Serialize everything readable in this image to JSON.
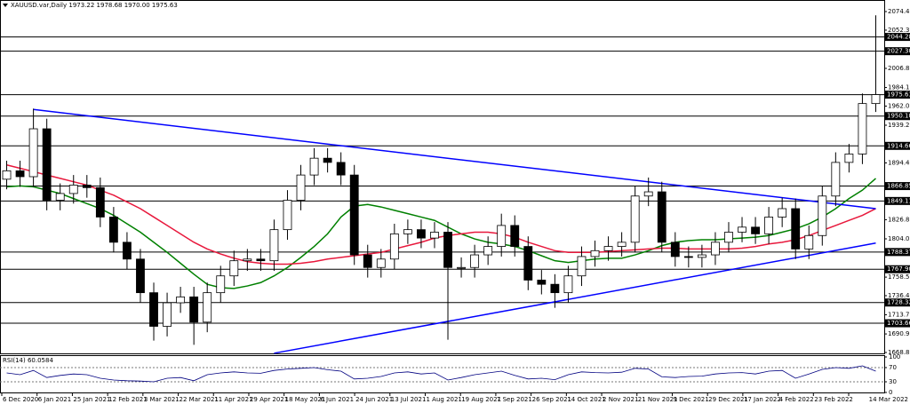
{
  "chart_data": {
    "type": "candlestick",
    "title": "XAUUSD.var,Daily  1973.22 1978.68 1970.00 1975.63",
    "ylim": [
      1667.8,
      2088.2
    ],
    "yticks": [
      2074.45,
      2052.35,
      2006.85,
      {
        "value": 1984.1,
        "label": "1984.10"
      },
      {
        "value": 1962,
        "label": "1962.00"
      },
      1939.25,
      {
        "value": 1894.4,
        "label": "1894.40"
      },
      1826.85,
      1804.05,
      1758.55,
      1736.45,
      {
        "value": 1713.7,
        "label": "1713.70"
      },
      1690.95,
      1668.88
    ],
    "levels": [
      2044.28,
      {
        "value": 2027.3,
        "label": "2027.30"
      },
      1975.63,
      {
        "value": 1950.1,
        "label": "1950.10"
      },
      1914.66,
      1866.85,
      1849.11,
      1788.37,
      {
        "value": 1767.9,
        "label": "1767.90"
      },
      1728.32,
      1703.66
    ],
    "xticks": [
      "6 Dec 2020",
      "6 Jan 2021",
      "25 Jan 2021",
      "12 Feb 2021",
      "3 Mar 2021",
      "22 Mar 2021",
      "11 Apr 2021",
      "29 Apr 2021",
      "18 May 2021",
      "6 Jun 2021",
      "24 Jun 2021",
      "13 Jul 2021",
      "1 Aug 2021",
      "19 Aug 2021",
      "7 Sep 2021",
      "26 Sep 2021",
      "14 Oct 2021",
      "2 Nov 2021",
      "21 Nov 2021",
      "9 Dec 2021",
      "29 Dec 2021",
      "17 Jan 2022",
      "4 Feb 2022",
      "23 Feb 2022",
      "14 Mar 2022"
    ],
    "open": [
      1875,
      1885,
      1878,
      1935,
      1850,
      1858,
      1868,
      1865,
      1830,
      1800,
      1780,
      1740,
      1700,
      1728,
      1735,
      1705,
      1740,
      1760,
      1778,
      1780,
      1778,
      1815,
      1850,
      1880,
      1900,
      1895,
      1880,
      1785,
      1770,
      1780,
      1810,
      1815,
      1805,
      1812,
      1770,
      1770,
      1785,
      1795,
      1820,
      1795,
      1755,
      1750,
      1740,
      1760,
      1783,
      1790,
      1795,
      1800,
      1855,
      1860,
      1800,
      1783,
      1782,
      1785,
      1800,
      1812,
      1818,
      1810,
      1830,
      1840,
      1792,
      1808,
      1855,
      1895,
      1905,
      1965
    ],
    "high": [
      1897,
      1897,
      1959,
      1947,
      1870,
      1880,
      1880,
      1877,
      1842,
      1812,
      1792,
      1752,
      1740,
      1747,
      1747,
      1752,
      1772,
      1790,
      1792,
      1792,
      1827,
      1862,
      1892,
      1912,
      1912,
      1907,
      1892,
      1797,
      1792,
      1822,
      1827,
      1827,
      1824,
      1824,
      1782,
      1797,
      1807,
      1834,
      1832,
      1807,
      1767,
      1762,
      1772,
      1795,
      1802,
      1807,
      1812,
      1867,
      1877,
      1872,
      1812,
      1795,
      1797,
      1812,
      1824,
      1830,
      1830,
      1842,
      1853,
      1852,
      1820,
      1867,
      1907,
      1917,
      1977,
      2070
    ],
    "low": [
      1863,
      1866,
      1866,
      1838,
      1838,
      1846,
      1853,
      1818,
      1788,
      1768,
      1728,
      1683,
      1688,
      1716,
      1678,
      1693,
      1728,
      1748,
      1766,
      1766,
      1766,
      1803,
      1838,
      1868,
      1883,
      1868,
      1773,
      1758,
      1758,
      1768,
      1798,
      1793,
      1793,
      1684,
      1758,
      1758,
      1773,
      1783,
      1783,
      1743,
      1738,
      1722,
      1728,
      1748,
      1771,
      1778,
      1783,
      1788,
      1843,
      1788,
      1771,
      1770,
      1770,
      1773,
      1788,
      1800,
      1798,
      1798,
      1818,
      1780,
      1780,
      1796,
      1843,
      1883,
      1893,
      1955
    ],
    "close": [
      1885,
      1878,
      1935,
      1850,
      1858,
      1868,
      1865,
      1830,
      1800,
      1780,
      1740,
      1700,
      1728,
      1735,
      1705,
      1740,
      1760,
      1778,
      1780,
      1778,
      1815,
      1850,
      1880,
      1900,
      1895,
      1880,
      1785,
      1770,
      1780,
      1810,
      1815,
      1805,
      1812,
      1770,
      1770,
      1785,
      1795,
      1820,
      1795,
      1755,
      1750,
      1740,
      1760,
      1783,
      1790,
      1795,
      1800,
      1855,
      1860,
      1800,
      1783,
      1782,
      1785,
      1800,
      1812,
      1818,
      1810,
      1830,
      1840,
      1792,
      1808,
      1855,
      1895,
      1905,
      1965,
      1975.63
    ],
    "series": [
      {
        "color": "#008000",
        "values": [
          1866,
          1867,
          1866,
          1862,
          1858,
          1852,
          1846,
          1840,
          1832,
          1822,
          1812,
          1800,
          1788,
          1775,
          1762,
          1750,
          1746,
          1745,
          1748,
          1752,
          1760,
          1770,
          1782,
          1795,
          1810,
          1830,
          1843,
          1845,
          1842,
          1838,
          1834,
          1830,
          1826,
          1818,
          1810,
          1804,
          1800,
          1798,
          1795,
          1790,
          1784,
          1778,
          1776,
          1778,
          1780,
          1781,
          1781,
          1785,
          1790,
          1796,
          1800,
          1802,
          1803,
          1803,
          1804,
          1805,
          1806,
          1808,
          1812,
          1816,
          1822,
          1830,
          1840,
          1852,
          1862,
          1876
        ]
      },
      {
        "color": "#e8183c",
        "values": [
          1892,
          1888,
          1884,
          1880,
          1876,
          1872,
          1868,
          1862,
          1856,
          1848,
          1840,
          1830,
          1820,
          1810,
          1800,
          1792,
          1786,
          1781,
          1777,
          1775,
          1774,
          1774,
          1775,
          1777,
          1780,
          1782,
          1784,
          1786,
          1788,
          1792,
          1796,
          1800,
          1805,
          1808,
          1810,
          1812,
          1812,
          1810,
          1806,
          1800,
          1795,
          1790,
          1788,
          1788,
          1788,
          1789,
          1790,
          1791,
          1792,
          1793,
          1793,
          1792,
          1792,
          1792,
          1792,
          1793,
          1795,
          1798,
          1800,
          1803,
          1808,
          1814,
          1820,
          1826,
          1832,
          1840
        ]
      }
    ],
    "trendlines": [
      {
        "color": "#0000ff",
        "start": [
          2,
          1958
        ],
        "end": [
          65,
          1840
        ]
      },
      {
        "color": "#0000ff",
        "start": [
          20,
          1668
        ],
        "end": [
          65,
          1799
        ]
      }
    ],
    "rsi": {
      "title": "RSI(14) 60.0584",
      "color": "#000080",
      "ylim": [
        0,
        100
      ],
      "yticks": [
        100,
        70,
        30,
        0
      ],
      "levels": [
        70,
        30
      ],
      "values": [
        55,
        50,
        62,
        42,
        48,
        52,
        50,
        40,
        35,
        33,
        32,
        30,
        40,
        42,
        33,
        50,
        55,
        58,
        55,
        54,
        62,
        66,
        68,
        70,
        64,
        60,
        38,
        40,
        45,
        55,
        58,
        52,
        55,
        35,
        42,
        50,
        55,
        60,
        48,
        38,
        40,
        36,
        50,
        58,
        56,
        55,
        57,
        68,
        66,
        44,
        42,
        45,
        46,
        52,
        55,
        56,
        52,
        60,
        62,
        40,
        52,
        65,
        70,
        68,
        75,
        60.0584
      ]
    }
  }
}
